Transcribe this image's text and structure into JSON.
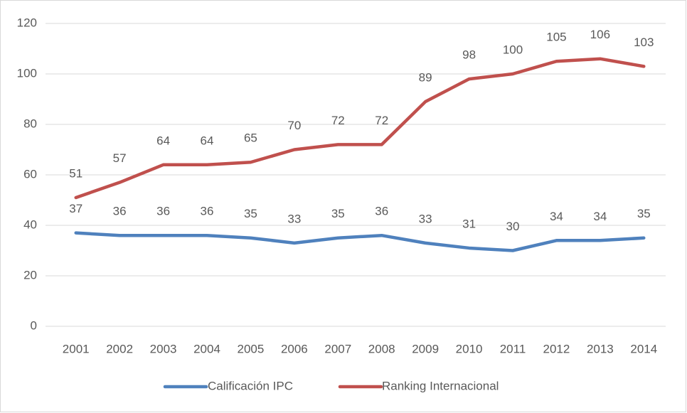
{
  "chart_data": {
    "type": "line",
    "categories": [
      "2001",
      "2002",
      "2003",
      "2004",
      "2005",
      "2006",
      "2007",
      "2008",
      "2009",
      "2010",
      "2011",
      "2012",
      "2013",
      "2014"
    ],
    "series": [
      {
        "name": "Calificación IPC",
        "color": "#4f81bd",
        "values": [
          37,
          36,
          36,
          36,
          35,
          33,
          35,
          36,
          33,
          31,
          30,
          34,
          34,
          35
        ]
      },
      {
        "name": "Ranking Internacional",
        "color": "#c0504d",
        "values": [
          51,
          57,
          64,
          64,
          65,
          70,
          72,
          72,
          89,
          98,
          100,
          105,
          106,
          103
        ]
      }
    ],
    "ylim": [
      0,
      120
    ],
    "yticks": [
      0,
      20,
      40,
      60,
      80,
      100,
      120
    ],
    "grid": true,
    "legend": "bottom"
  }
}
